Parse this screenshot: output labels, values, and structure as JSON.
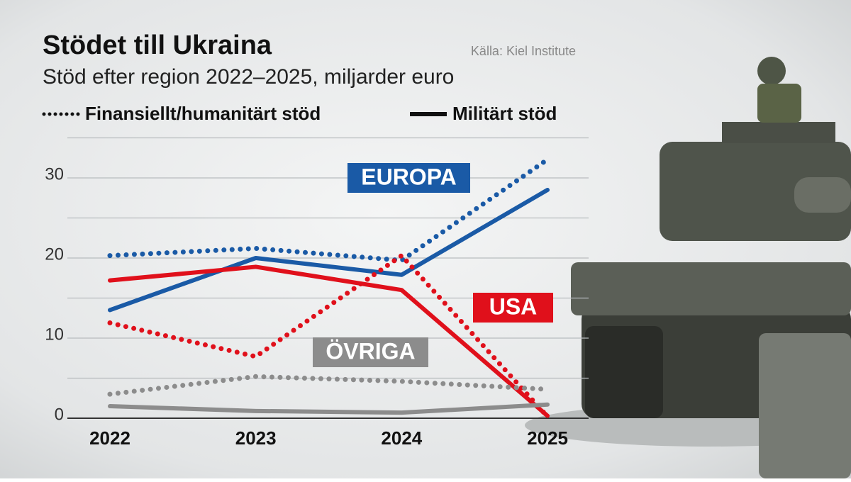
{
  "chart_data": {
    "type": "line",
    "title": "Stödet till Ukraina",
    "subtitle": "Stöd efter region 2022–2025, miljarder euro",
    "source": "Källa: Kiel Institute",
    "legend": {
      "dotted": "Finansiellt/humanitärt stöd",
      "solid": "Militärt stöd"
    },
    "categories": [
      "2022",
      "2023",
      "2024",
      "2025"
    ],
    "regions": [
      {
        "name": "EUROPA",
        "color": "#1a5aa6",
        "financial": [
          20.3,
          21.2,
          19.7,
          32.3
        ],
        "military": [
          13.5,
          20.0,
          17.9,
          28.5
        ]
      },
      {
        "name": "USA",
        "color": "#e0101b",
        "financial": [
          11.9,
          7.7,
          20.3,
          0.2
        ],
        "military": [
          17.2,
          18.9,
          16.0,
          0.3
        ]
      },
      {
        "name": "ÖVRIGA",
        "color": "#8c8c8c",
        "financial": [
          3.0,
          5.2,
          4.6,
          3.6
        ],
        "military": [
          1.5,
          0.9,
          0.7,
          1.7
        ]
      }
    ],
    "ylim": [
      0,
      35
    ],
    "yticks": [
      0,
      10,
      20,
      30
    ],
    "minor_yticks": [
      5,
      15,
      25,
      35
    ],
    "grid": true
  }
}
